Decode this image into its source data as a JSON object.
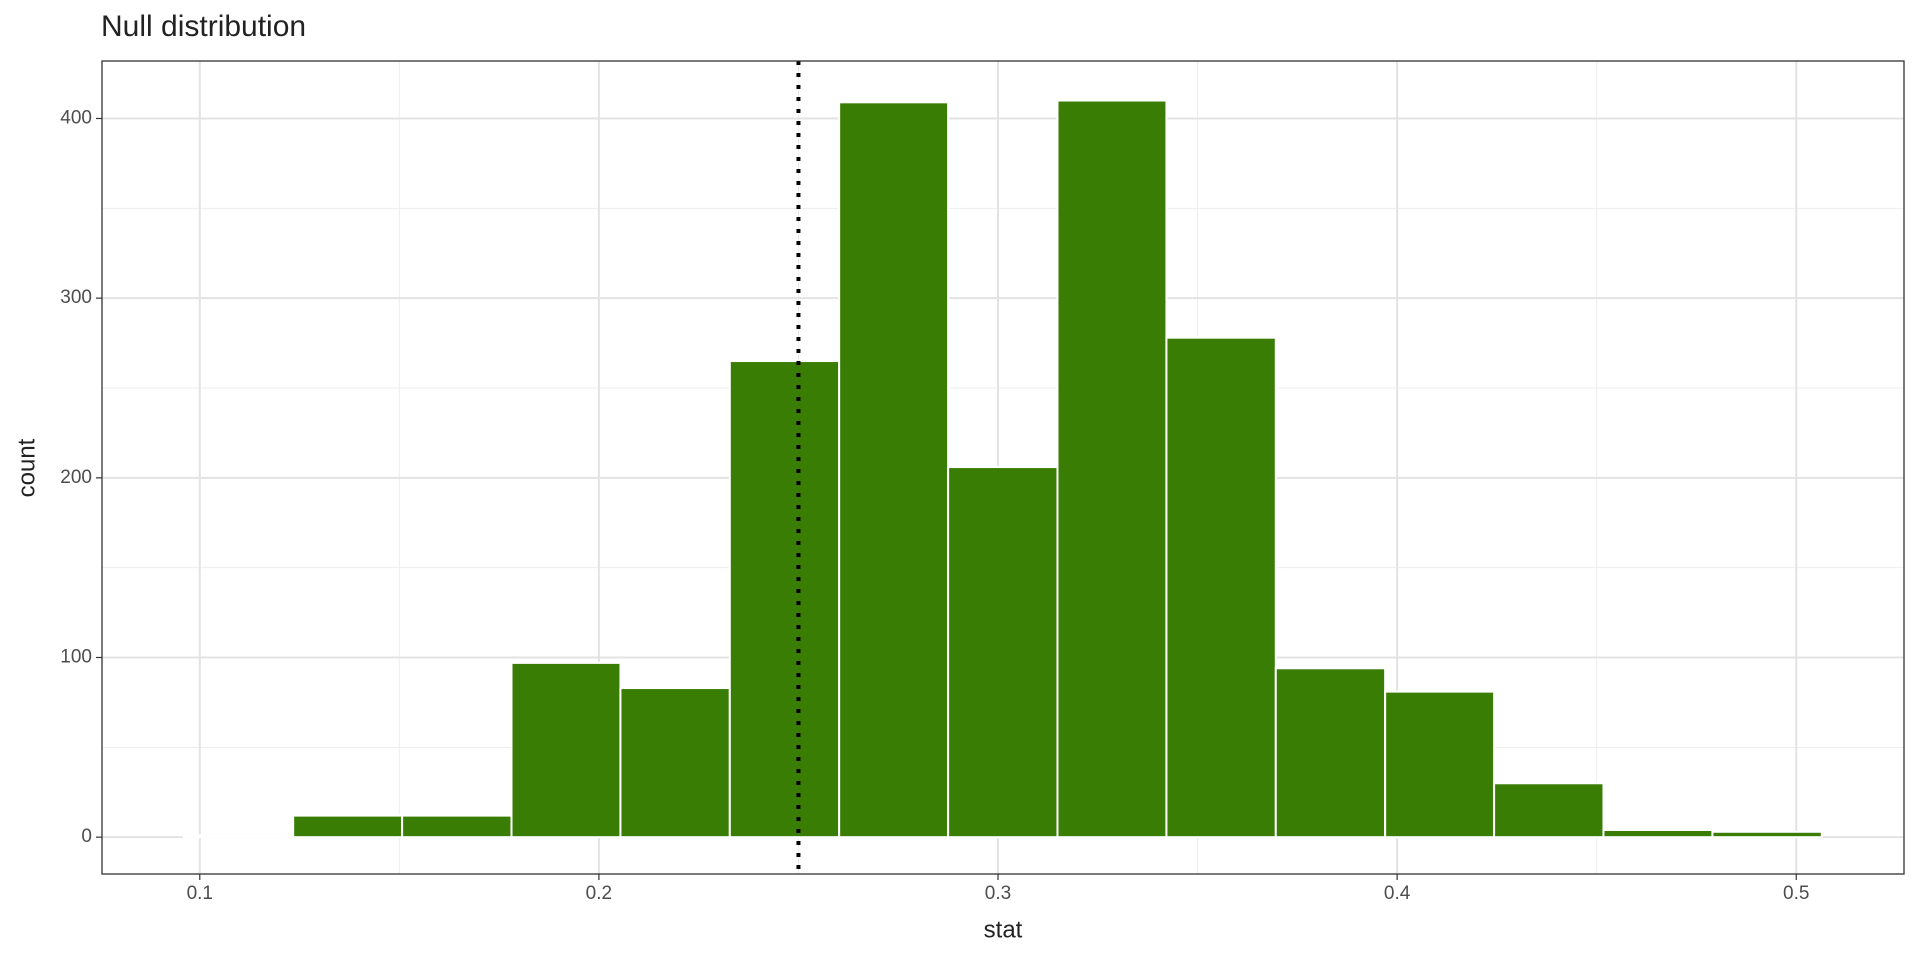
{
  "chart_data": {
    "type": "histogram",
    "title": "Null distribution",
    "x_label": "stat",
    "y_label": "count",
    "bins": [
      0.096,
      0.1234,
      0.1507,
      0.1781,
      0.2054,
      0.2328,
      0.2602,
      0.2875,
      0.3149,
      0.3422,
      0.3696,
      0.397,
      0.4243,
      0.4517,
      0.479,
      0.5064
    ],
    "values": [
      1,
      12,
      12,
      97,
      83,
      265,
      409,
      206,
      410,
      278,
      94,
      81,
      30,
      4,
      3
    ],
    "color": "#3a7d04",
    "xintercept": 0.25,
    "xlim": [
      0.0755,
      0.527
    ],
    "ylim": [
      -20.5,
      432
    ],
    "xticks": [
      0.1,
      0.2,
      0.3,
      0.4,
      0.5
    ],
    "yticks": [
      0,
      100,
      200,
      300,
      400
    ],
    "xminor": [
      0.15,
      0.25,
      0.35,
      0.45
    ],
    "yminor": [
      50,
      150,
      250,
      350
    ],
    "grid": true
  }
}
